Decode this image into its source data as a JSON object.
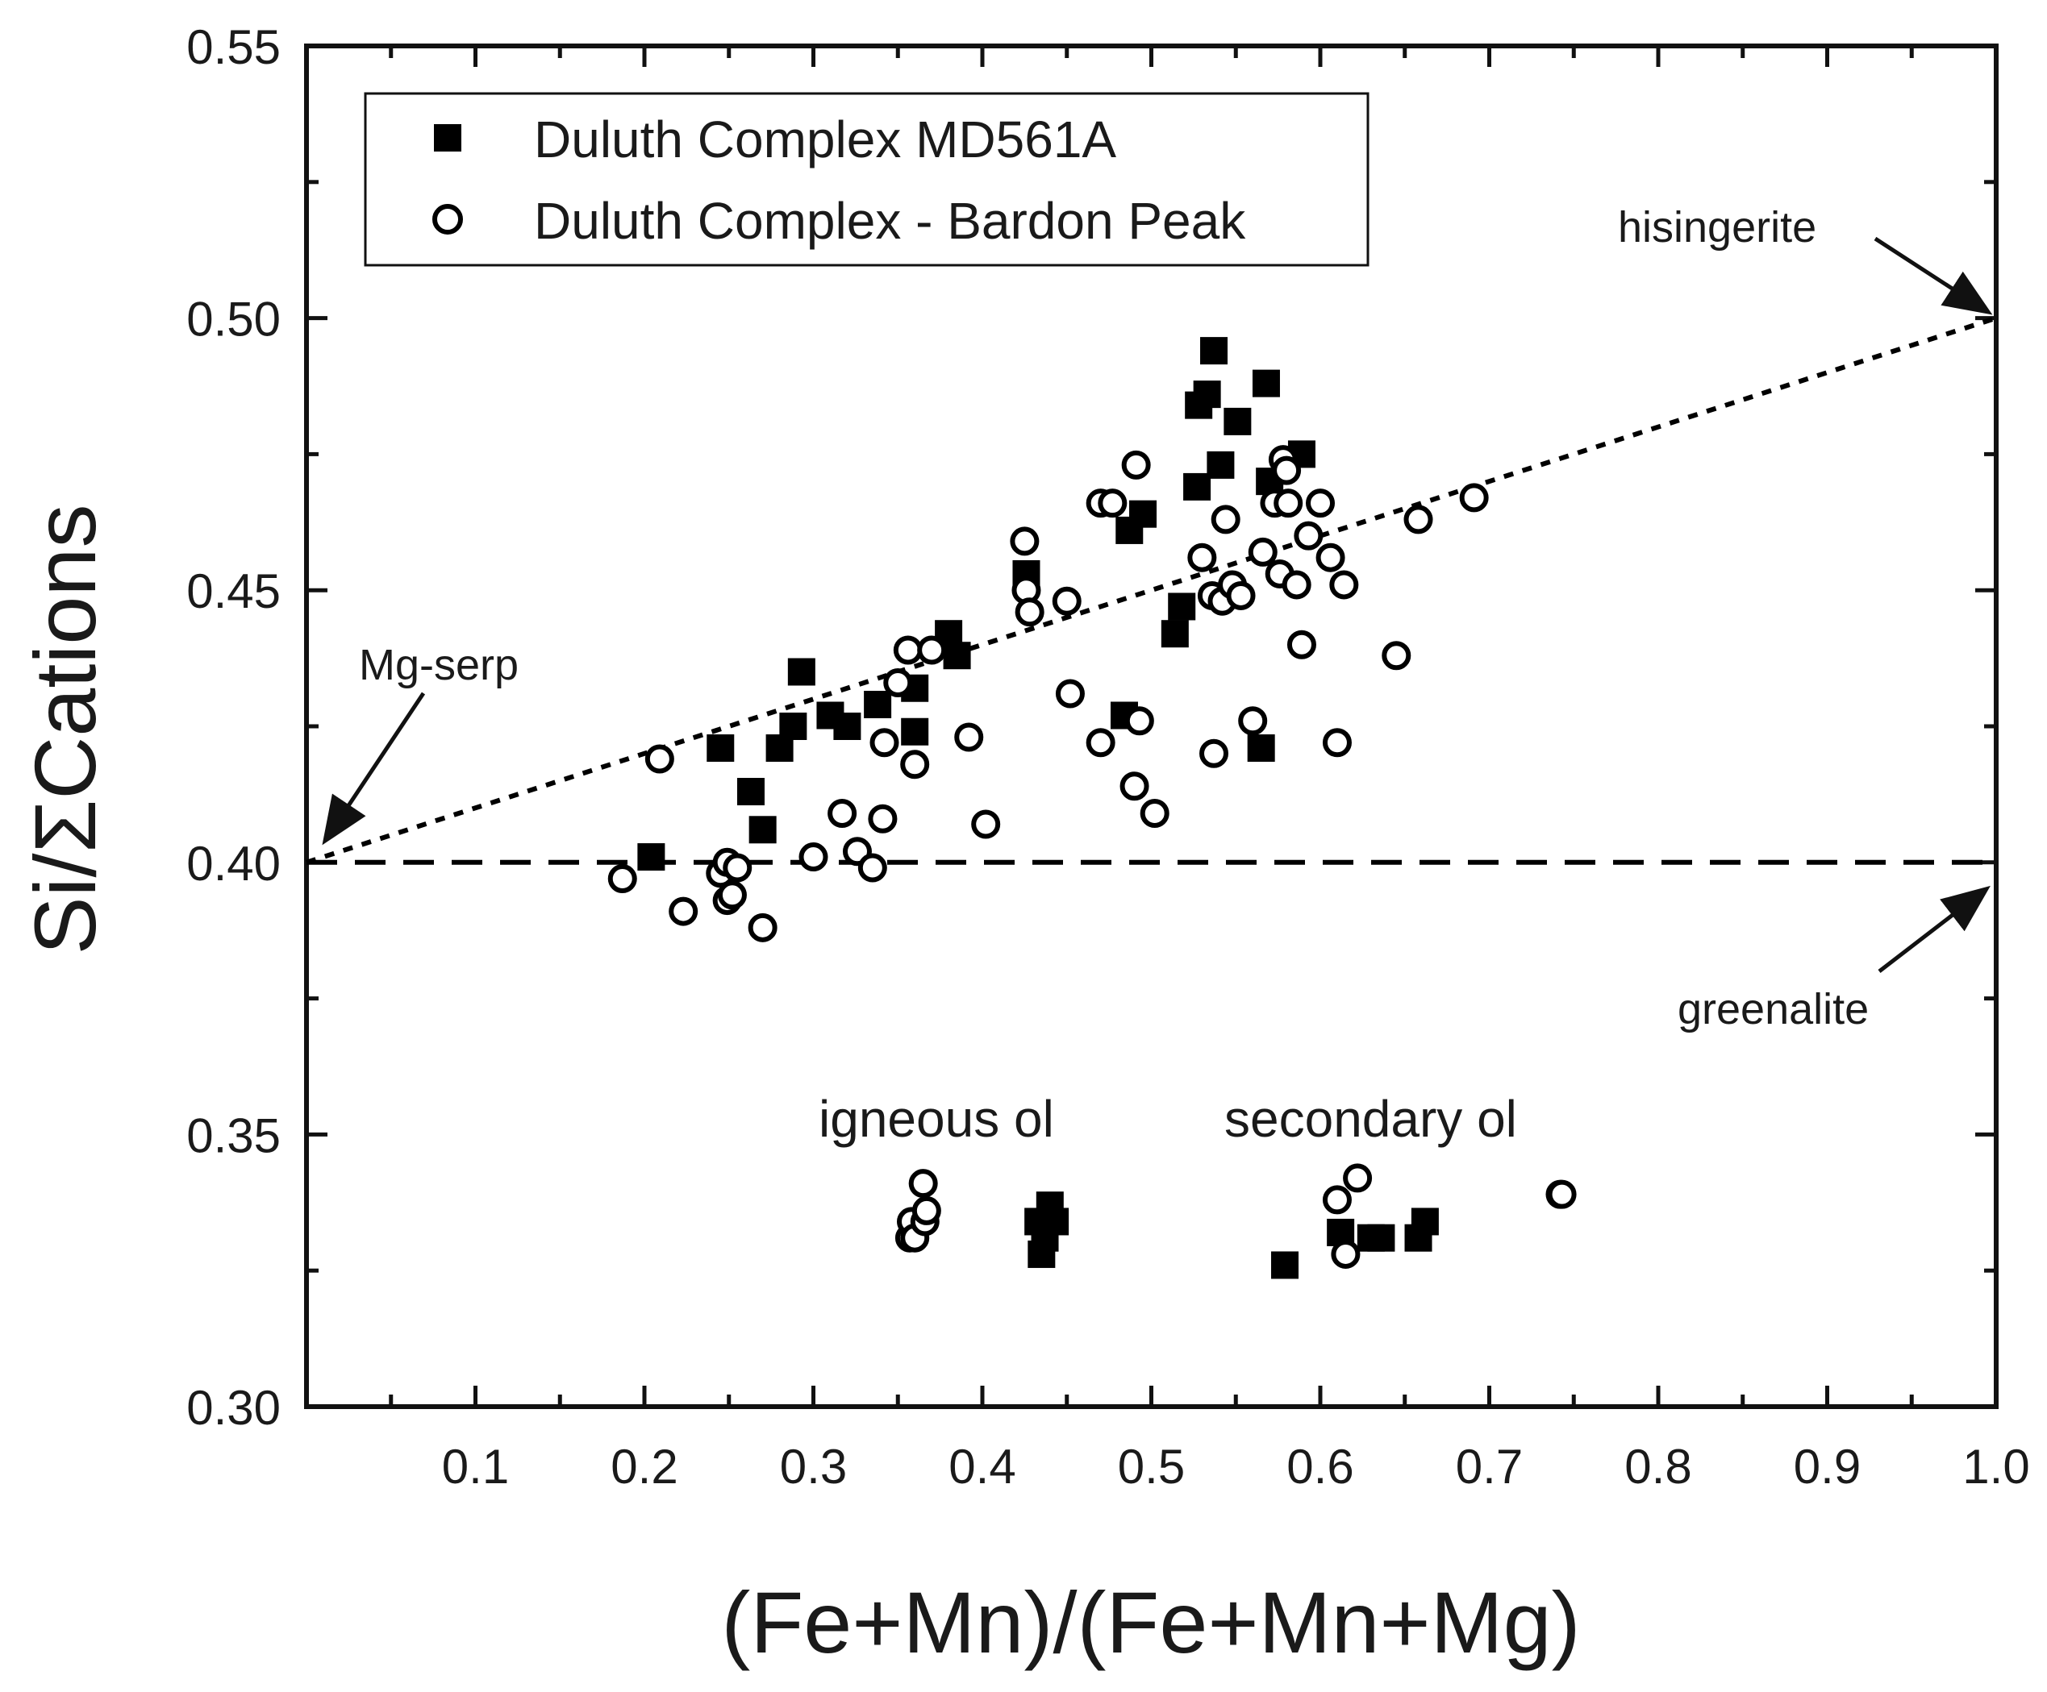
{
  "chart_data": {
    "type": "scatter",
    "title": "",
    "xlabel": "(Fe+Mn)/(Fe+Mn+Mg)",
    "ylabel": "Si/ΣCations",
    "xlim": [
      0.0,
      1.0
    ],
    "ylim": [
      0.3,
      0.55
    ],
    "x_ticks": [
      "0.1",
      "0.2",
      "0.3",
      "0.4",
      "0.5",
      "0.6",
      "0.7",
      "0.8",
      "0.9",
      "1.0"
    ],
    "y_ticks": [
      "0.30",
      "0.35",
      "0.40",
      "0.45",
      "0.50",
      "0.55"
    ],
    "grid": false,
    "legend_position": "top-left",
    "series": [
      {
        "name": "Duluth Complex MD561A",
        "marker": "filled-square",
        "points": [
          [
            0.204,
            0.401
          ],
          [
            0.245,
            0.421
          ],
          [
            0.263,
            0.413
          ],
          [
            0.27,
            0.406
          ],
          [
            0.28,
            0.421
          ],
          [
            0.288,
            0.425
          ],
          [
            0.293,
            0.435
          ],
          [
            0.31,
            0.427
          ],
          [
            0.32,
            0.425
          ],
          [
            0.338,
            0.429
          ],
          [
            0.36,
            0.432
          ],
          [
            0.36,
            0.424
          ],
          [
            0.38,
            0.442
          ],
          [
            0.385,
            0.438
          ],
          [
            0.426,
            0.453
          ],
          [
            0.484,
            0.427
          ],
          [
            0.487,
            0.461
          ],
          [
            0.495,
            0.464
          ],
          [
            0.514,
            0.442
          ],
          [
            0.518,
            0.447
          ],
          [
            0.527,
            0.469
          ],
          [
            0.528,
            0.484
          ],
          [
            0.533,
            0.486
          ],
          [
            0.537,
            0.494
          ],
          [
            0.541,
            0.473
          ],
          [
            0.551,
            0.481
          ],
          [
            0.568,
            0.488
          ],
          [
            0.57,
            0.47
          ],
          [
            0.565,
            0.421
          ],
          [
            0.589,
            0.475
          ],
          [
            0.579,
            0.326
          ],
          [
            0.612,
            0.332
          ],
          [
            0.63,
            0.331
          ],
          [
            0.636,
            0.331
          ],
          [
            0.658,
            0.331
          ],
          [
            0.662,
            0.334
          ],
          [
            0.433,
            0.334
          ],
          [
            0.437,
            0.331
          ],
          [
            0.44,
            0.337
          ],
          [
            0.443,
            0.334
          ],
          [
            0.435,
            0.328
          ]
        ]
      },
      {
        "name": "Duluth Complex - Bardon Peak",
        "marker": "open-circle",
        "points": [
          [
            0.187,
            0.397
          ],
          [
            0.209,
            0.419
          ],
          [
            0.223,
            0.391
          ],
          [
            0.245,
            0.398
          ],
          [
            0.249,
            0.4
          ],
          [
            0.249,
            0.393
          ],
          [
            0.252,
            0.394
          ],
          [
            0.255,
            0.399
          ],
          [
            0.27,
            0.388
          ],
          [
            0.3,
            0.401
          ],
          [
            0.317,
            0.409
          ],
          [
            0.326,
            0.402
          ],
          [
            0.335,
            0.399
          ],
          [
            0.341,
            0.408
          ],
          [
            0.342,
            0.422
          ],
          [
            0.35,
            0.433
          ],
          [
            0.356,
            0.439
          ],
          [
            0.36,
            0.418
          ],
          [
            0.37,
            0.439
          ],
          [
            0.392,
            0.423
          ],
          [
            0.402,
            0.407
          ],
          [
            0.425,
            0.459
          ],
          [
            0.426,
            0.45
          ],
          [
            0.428,
            0.446
          ],
          [
            0.45,
            0.448
          ],
          [
            0.452,
            0.431
          ],
          [
            0.47,
            0.466
          ],
          [
            0.47,
            0.422
          ],
          [
            0.477,
            0.466
          ],
          [
            0.49,
            0.414
          ],
          [
            0.491,
            0.473
          ],
          [
            0.493,
            0.426
          ],
          [
            0.502,
            0.409
          ],
          [
            0.53,
            0.456
          ],
          [
            0.536,
            0.449
          ],
          [
            0.537,
            0.42
          ],
          [
            0.542,
            0.448
          ],
          [
            0.544,
            0.463
          ],
          [
            0.548,
            0.451
          ],
          [
            0.553,
            0.449
          ],
          [
            0.56,
            0.426
          ],
          [
            0.566,
            0.457
          ],
          [
            0.573,
            0.466
          ],
          [
            0.576,
            0.453
          ],
          [
            0.578,
            0.474
          ],
          [
            0.58,
            0.472
          ],
          [
            0.581,
            0.466
          ],
          [
            0.586,
            0.451
          ],
          [
            0.589,
            0.44
          ],
          [
            0.593,
            0.46
          ],
          [
            0.6,
            0.466
          ],
          [
            0.606,
            0.456
          ],
          [
            0.61,
            0.422
          ],
          [
            0.614,
            0.451
          ],
          [
            0.645,
            0.438
          ],
          [
            0.658,
            0.463
          ],
          [
            0.691,
            0.467
          ],
          [
            0.357,
            0.331
          ],
          [
            0.358,
            0.334
          ],
          [
            0.36,
            0.331
          ],
          [
            0.365,
            0.341
          ],
          [
            0.366,
            0.334
          ],
          [
            0.367,
            0.336
          ],
          [
            0.61,
            0.338
          ],
          [
            0.615,
            0.328
          ],
          [
            0.622,
            0.342
          ],
          [
            0.742,
            0.339
          ],
          [
            0.743,
            0.339
          ]
        ]
      }
    ],
    "reference_lines": [
      {
        "name": "Mg-serp to hisingerite trend",
        "style": "dotted",
        "from": [
          0.0,
          0.4
        ],
        "to": [
          1.0,
          0.5
        ]
      },
      {
        "name": "greenalite line",
        "style": "dashed",
        "from": [
          0.0,
          0.4
        ],
        "to": [
          1.0,
          0.4
        ]
      }
    ],
    "annotations": [
      {
        "text": "hisingerite",
        "target": [
          1.0,
          0.5
        ]
      },
      {
        "text": "Mg-serp",
        "target": [
          0.0,
          0.4
        ]
      },
      {
        "text": "greenalite",
        "target": [
          1.0,
          0.4
        ]
      },
      {
        "text": "igneous ol",
        "target": [
          0.4,
          0.35
        ]
      },
      {
        "text": "secondary ol",
        "target": [
          0.65,
          0.35
        ]
      }
    ]
  }
}
